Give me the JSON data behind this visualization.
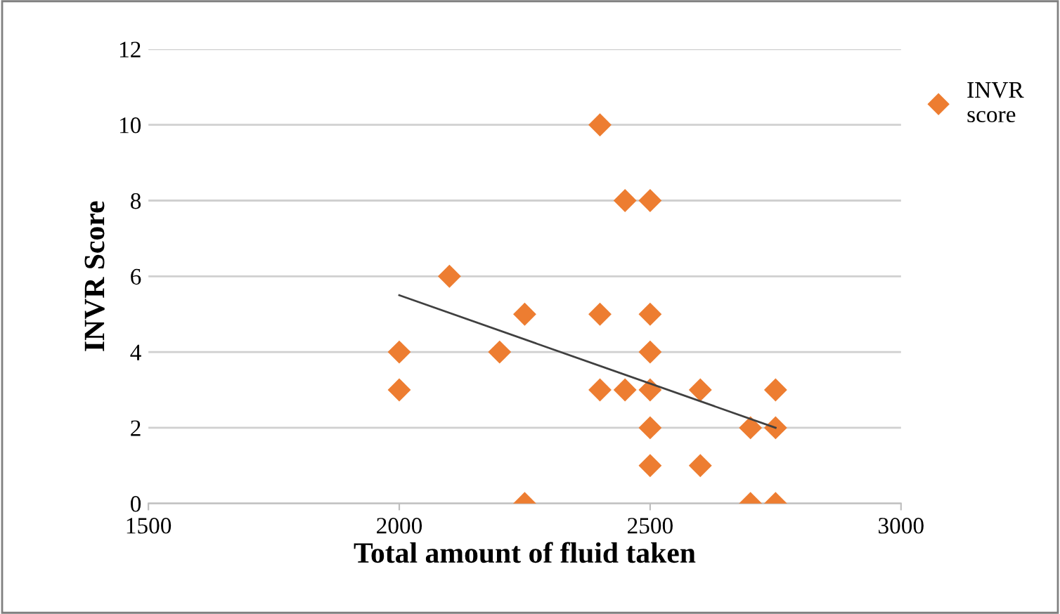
{
  "chart_data": {
    "type": "scatter",
    "xlabel": "Total amount of fluid taken",
    "ylabel": "INVR Score",
    "xlim": [
      1500,
      3000
    ],
    "xticks": [
      1500,
      2000,
      2500,
      3000
    ],
    "ylim": [
      0,
      12
    ],
    "yticks": [
      0,
      2,
      4,
      6,
      8,
      10,
      12
    ],
    "grid": "y",
    "legend": "right",
    "marker": "diamond",
    "series": [
      {
        "name": "INVR\nscore",
        "color": "#ed7d31",
        "x": [
          2400,
          2450,
          2500,
          2100,
          2250,
          2400,
          2500,
          2000,
          2200,
          2500,
          2000,
          2400,
          2450,
          2500,
          2600,
          2750,
          2500,
          2700,
          2750,
          2500,
          2600,
          2250,
          2700,
          2750
        ],
        "values": [
          10,
          8,
          8,
          6,
          5,
          5,
          5,
          4,
          4,
          4,
          3,
          3,
          3,
          3,
          3,
          3,
          2,
          2,
          2,
          1,
          1,
          0,
          0,
          0
        ]
      },
      {
        "type": "line",
        "color": "#404040",
        "x": [
          2000,
          2750
        ],
        "values": [
          5.5,
          2.0
        ],
        "marker": "none"
      }
    ]
  }
}
